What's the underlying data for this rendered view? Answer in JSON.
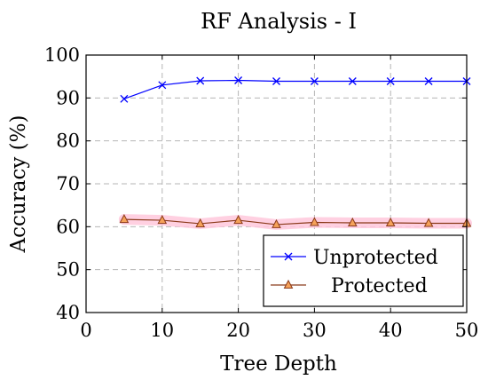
{
  "chart_data": {
    "type": "line",
    "title": "RF Analysis - I",
    "xlabel": "Tree Depth",
    "ylabel": "Accuracy (%)",
    "xlim": [
      0,
      50
    ],
    "ylim": [
      40,
      100
    ],
    "x_ticks": [
      0,
      10,
      20,
      30,
      40,
      50
    ],
    "y_ticks": [
      40,
      50,
      60,
      70,
      80,
      90,
      100
    ],
    "grid": true,
    "legend_position": "bottom-right",
    "x": [
      5,
      10,
      15,
      20,
      25,
      30,
      35,
      40,
      45,
      50
    ],
    "series": [
      {
        "name": "Unprotected",
        "values": [
          89.8,
          93.0,
          94.0,
          94.1,
          93.9,
          93.9,
          93.9,
          93.9,
          93.9,
          93.9
        ],
        "color": "#0000ff",
        "marker": "x"
      },
      {
        "name": "Protected",
        "values": [
          61.7,
          61.5,
          60.7,
          61.5,
          60.5,
          61.0,
          60.9,
          60.9,
          60.8,
          60.8
        ],
        "color": "#8b3a1a",
        "marker": "triangle",
        "marker_fill": "#f5a25a"
      }
    ]
  }
}
